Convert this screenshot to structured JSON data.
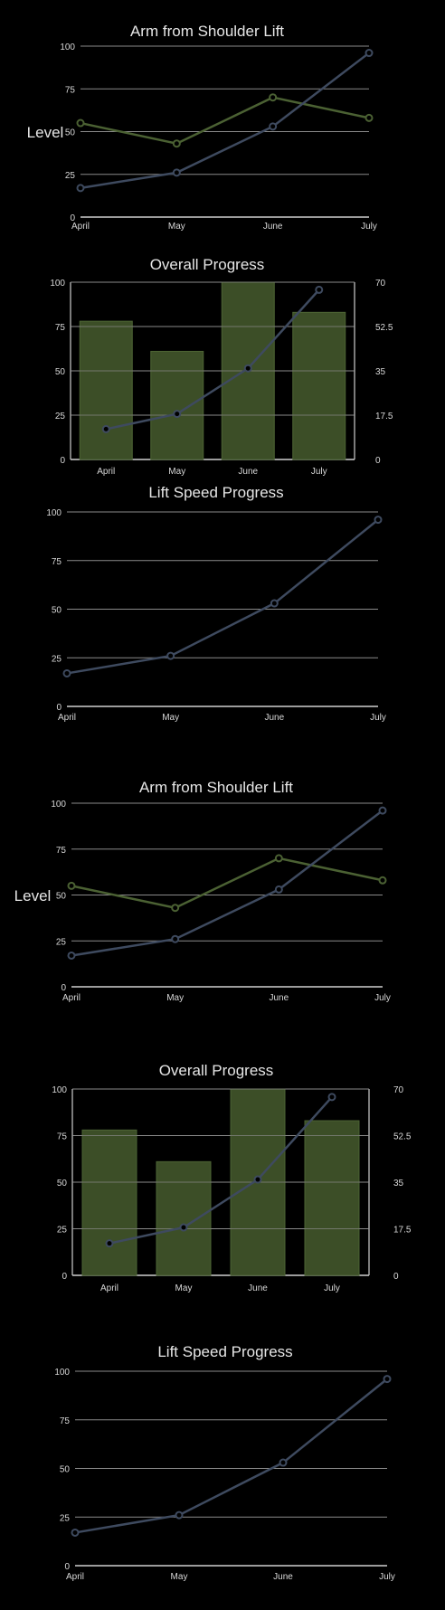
{
  "colors": {
    "background": "#000000",
    "grid": "#8a8a8a",
    "axis": "#cfcfcf",
    "green_series": "#4b6133",
    "blue_series": "#3e4a5f",
    "bar_fill": "#3c4e27",
    "bar_stroke": "#4d6434",
    "text": "#e6e6e6"
  },
  "chart_data": [
    {
      "type": "line",
      "title": "Arm from Shoulder Lift",
      "ylabel": "Level",
      "x": [
        "April",
        "May",
        "June",
        "July"
      ],
      "ylim": [
        0,
        100
      ],
      "yticks": [
        0,
        25,
        50,
        75,
        100
      ],
      "series": [
        {
          "values": [
            55,
            43,
            70,
            58
          ],
          "color": "#4b6133"
        },
        {
          "values": [
            17,
            26,
            53,
            96
          ],
          "color": "#3e4a5f"
        }
      ]
    },
    {
      "type": "bar",
      "title": "Overall Progress",
      "categories": [
        "April",
        "May",
        "June",
        "July"
      ],
      "ylim": [
        0,
        100
      ],
      "yticks": [
        0,
        25,
        50,
        75,
        100
      ],
      "values": [
        78,
        61,
        100,
        83
      ],
      "y2lim": [
        0,
        70
      ],
      "y2ticks": [
        "0",
        "17.5",
        "35",
        "52.5",
        "70"
      ],
      "line_values": [
        12,
        18,
        36,
        67
      ]
    },
    {
      "type": "line",
      "title": "Lift Speed Progress",
      "x": [
        "April",
        "May",
        "June",
        "July"
      ],
      "ylim": [
        0,
        100
      ],
      "yticks": [
        0,
        25,
        50,
        75,
        100
      ],
      "series": [
        {
          "values": [
            17,
            26,
            53,
            96
          ],
          "color": "#3e4a5f"
        }
      ]
    },
    {
      "type": "line",
      "title": "Arm from Shoulder Lift",
      "ylabel": "Level",
      "x": [
        "April",
        "May",
        "June",
        "July"
      ],
      "ylim": [
        0,
        100
      ],
      "yticks": [
        0,
        25,
        50,
        75,
        100
      ],
      "series": [
        {
          "values": [
            55,
            43,
            70,
            58
          ],
          "color": "#4b6133"
        },
        {
          "values": [
            17,
            26,
            53,
            96
          ],
          "color": "#3e4a5f"
        }
      ]
    },
    {
      "type": "bar",
      "title": "Overall Progress",
      "categories": [
        "April",
        "May",
        "June",
        "July"
      ],
      "ylim": [
        0,
        100
      ],
      "yticks": [
        0,
        25,
        50,
        75,
        100
      ],
      "values": [
        78,
        61,
        100,
        83
      ],
      "y2lim": [
        0,
        70
      ],
      "y2ticks": [
        "0",
        "17.5",
        "35",
        "52.5",
        "70"
      ],
      "line_values": [
        12,
        18,
        36,
        67
      ]
    },
    {
      "type": "line",
      "title": "Lift Speed Progress",
      "x": [
        "April",
        "May",
        "June",
        "July"
      ],
      "ylim": [
        0,
        100
      ],
      "yticks": [
        0,
        25,
        50,
        75,
        100
      ],
      "series": [
        {
          "values": [
            17,
            26,
            53,
            96
          ],
          "color": "#3e4a5f"
        }
      ]
    }
  ]
}
